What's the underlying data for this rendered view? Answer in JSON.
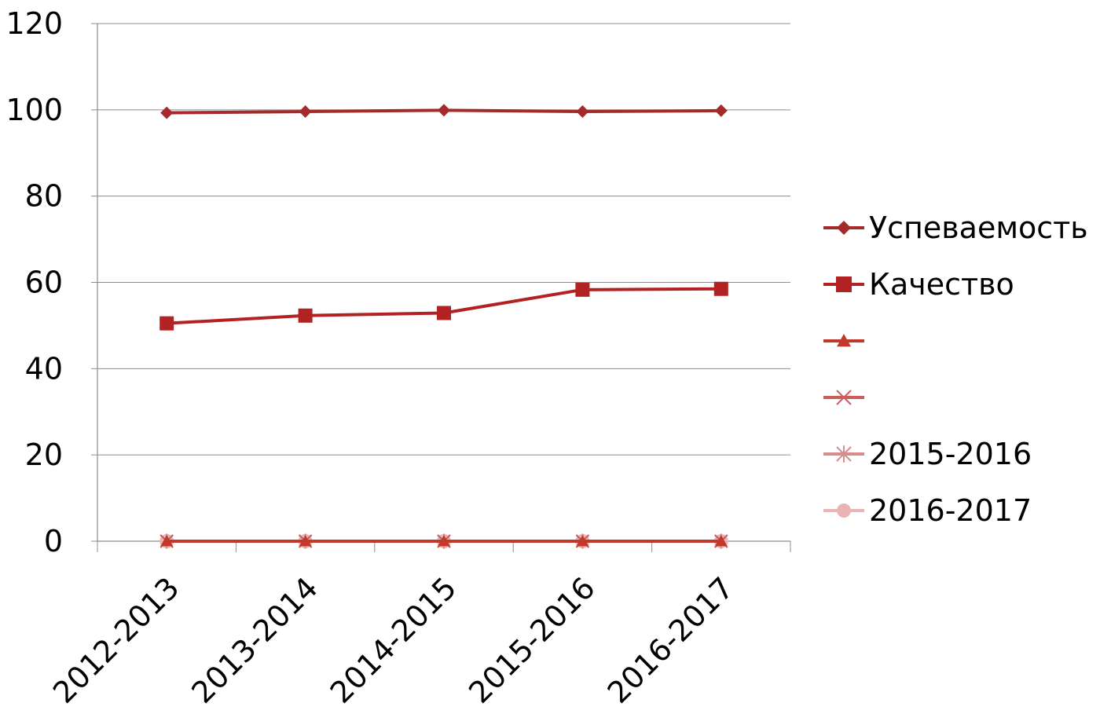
{
  "chart_data": {
    "type": "line",
    "title": "",
    "xlabel": "",
    "ylabel": "",
    "categories": [
      "2012-2013",
      "2013-2014",
      "2014-2015",
      "2015-2016",
      "2016-2017"
    ],
    "ylim": [
      0,
      120
    ],
    "yticks": [
      "0",
      "20",
      "40",
      "60",
      "80",
      "100",
      "120"
    ],
    "grid": true,
    "legend_position": "right",
    "series": [
      {
        "name": "Успеваемость",
        "values": [
          99.3,
          99.6,
          99.9,
          99.6,
          99.8
        ],
        "color": "#a52a2a",
        "marker": "diamond"
      },
      {
        "name": "Качество",
        "values": [
          50.5,
          52.3,
          52.9,
          58.3,
          58.5
        ],
        "color": "#b22222",
        "marker": "square"
      },
      {
        "name": "",
        "values": [
          0,
          0,
          0,
          0,
          0
        ],
        "color": "#c0392b",
        "marker": "triangle"
      },
      {
        "name": "",
        "values": [
          0,
          0,
          0,
          0,
          0
        ],
        "color": "#cd5c5c",
        "marker": "x"
      },
      {
        "name": "2015-2016",
        "values": [
          0,
          0,
          0,
          0,
          0
        ],
        "color": "#d98c8c",
        "marker": "star"
      },
      {
        "name": "2016-2017",
        "values": [
          0,
          0,
          0,
          0,
          0
        ],
        "color": "#e8b4b4",
        "marker": "circle"
      }
    ]
  }
}
